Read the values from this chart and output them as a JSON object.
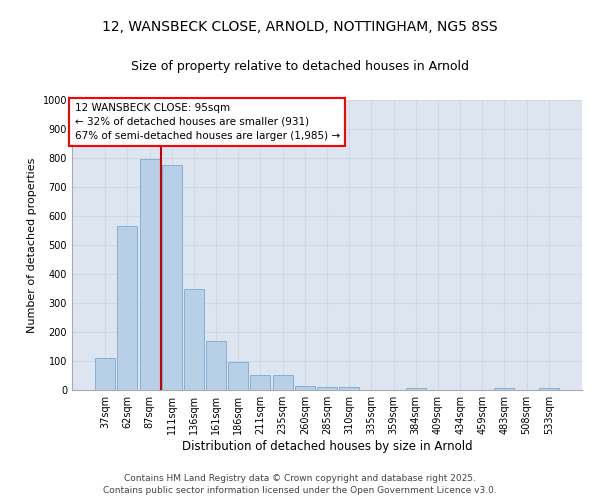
{
  "title1": "12, WANSBECK CLOSE, ARNOLD, NOTTINGHAM, NG5 8SS",
  "title2": "Size of property relative to detached houses in Arnold",
  "xlabel": "Distribution of detached houses by size in Arnold",
  "ylabel": "Number of detached properties",
  "categories": [
    "37sqm",
    "62sqm",
    "87sqm",
    "111sqm",
    "136sqm",
    "161sqm",
    "186sqm",
    "211sqm",
    "235sqm",
    "260sqm",
    "285sqm",
    "310sqm",
    "335sqm",
    "359sqm",
    "384sqm",
    "409sqm",
    "434sqm",
    "459sqm",
    "483sqm",
    "508sqm",
    "533sqm"
  ],
  "values": [
    110,
    565,
    795,
    775,
    350,
    170,
    97,
    52,
    52,
    15,
    12,
    10,
    0,
    0,
    8,
    0,
    0,
    0,
    8,
    0,
    8
  ],
  "bar_color": "#b8cfe8",
  "bar_edge_color": "#7aaad0",
  "grid_color": "#d0d8e8",
  "bg_color": "#dde6f0",
  "vline_color": "#cc0000",
  "vline_x_index": 2,
  "annotation_text": "12 WANSBECK CLOSE: 95sqm\n← 32% of detached houses are smaller (931)\n67% of semi-detached houses are larger (1,985) →",
  "ylim": [
    0,
    1000
  ],
  "yticks": [
    0,
    100,
    200,
    300,
    400,
    500,
    600,
    700,
    800,
    900,
    1000
  ],
  "footer_line1": "Contains HM Land Registry data © Crown copyright and database right 2025.",
  "footer_line2": "Contains public sector information licensed under the Open Government Licence v3.0.",
  "title1_fontsize": 10,
  "title2_fontsize": 9,
  "xlabel_fontsize": 8.5,
  "ylabel_fontsize": 8,
  "tick_fontsize": 7,
  "footer_fontsize": 6.5,
  "ann_fontsize": 7.5
}
